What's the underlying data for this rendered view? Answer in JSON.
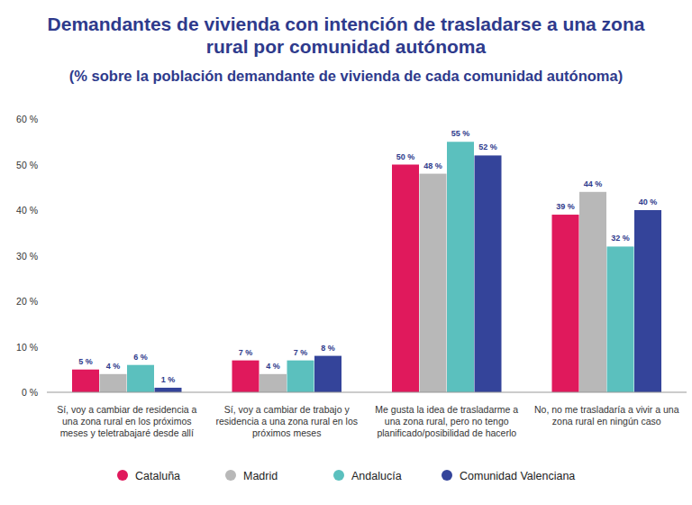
{
  "chart_data": {
    "type": "bar",
    "title": "Demandantes de vivienda con intención de trasladarse a una zona rural por comunidad autónoma",
    "subtitle": "(% sobre la población demandante de vivienda de cada comunidad autónoma)",
    "categories": [
      "Sí, voy a cambiar de residencia a una zona rural en los próximos meses  y teletrabajaré desde allí",
      "Sí, voy a cambiar de trabajo y residencia a una zona rural en los próximos meses",
      "Me gusta la idea de trasladarme a una zona rural, pero no tengo planificado/posibilidad de hacerlo",
      "No, no me trasladaría a vivir a una zona rural en ningún caso"
    ],
    "series": [
      {
        "name": "Cataluña",
        "color": "#e0195c",
        "values": [
          5,
          7,
          50,
          39
        ],
        "value_labels": [
          "5 %",
          "7 %",
          "50 %",
          "39 %"
        ]
      },
      {
        "name": "Madrid",
        "color": "#b8b8b8",
        "values": [
          4,
          4,
          48,
          44
        ],
        "value_labels": [
          "4 %",
          "4 %",
          "48 %",
          "44 %"
        ]
      },
      {
        "name": "Andalucía",
        "color": "#5bc0be",
        "values": [
          6,
          7,
          55,
          32
        ],
        "value_labels": [
          "6 %",
          "7 %",
          "55 %",
          "32 %"
        ]
      },
      {
        "name": "Comunidad Valenciana",
        "color": "#34449a",
        "values": [
          1,
          8,
          52,
          40
        ],
        "value_labels": [
          "1 %",
          "8 %",
          "52 %",
          "40 %"
        ]
      }
    ],
    "ylim": [
      0,
      60
    ],
    "yticks": [
      {
        "value": 0,
        "label": "0 %"
      },
      {
        "value": 10,
        "label": "10 %"
      },
      {
        "value": 20,
        "label": "20 %"
      },
      {
        "value": 30,
        "label": "30 %"
      },
      {
        "value": 40,
        "label": "40 %"
      },
      {
        "value": 50,
        "label": "50 %"
      },
      {
        "value": 60,
        "label": "60 %"
      }
    ],
    "grid": false,
    "legend": "bottom",
    "data_labels": true
  }
}
